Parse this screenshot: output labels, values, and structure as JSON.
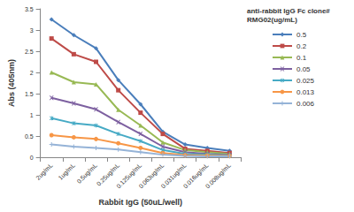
{
  "chart_data": {
    "type": "line",
    "x_label": "Rabbit IgG (50uL/well)",
    "y_label": "Abs (405nm)",
    "legend_title": "anti-rabbit IgG Fc clone# RMG02(ug/mL)",
    "categories": [
      "2ug/mL",
      "1ug/mL",
      "0.5ug/mL",
      "0.25ug/mL",
      "0.125ug/mL",
      "0.063ug/mL",
      "0.031ug/mL",
      "0.016ug/mL",
      "0.008ug/mL"
    ],
    "ylim": [
      0,
      3.5
    ],
    "yticks": [
      0,
      0.5,
      1,
      1.5,
      2,
      2.5,
      3,
      3.5
    ],
    "grid": false,
    "legend": "right",
    "series": [
      {
        "name": "0.5",
        "color": "#4a7ebb",
        "marker": "diamond",
        "values": [
          3.25,
          2.88,
          2.57,
          1.82,
          1.25,
          0.6,
          0.3,
          0.22,
          0.15
        ]
      },
      {
        "name": "0.2",
        "color": "#be4b48",
        "marker": "square",
        "values": [
          2.8,
          2.43,
          2.25,
          1.58,
          1.05,
          0.55,
          0.2,
          0.15,
          0.1
        ]
      },
      {
        "name": "0.1",
        "color": "#98b954",
        "marker": "triangle",
        "values": [
          2.0,
          1.77,
          1.72,
          1.12,
          0.75,
          0.35,
          0.17,
          0.12,
          0.08
        ]
      },
      {
        "name": "0.05",
        "color": "#7d60a0",
        "marker": "x",
        "values": [
          1.4,
          1.27,
          1.13,
          0.83,
          0.55,
          0.25,
          0.12,
          0.08,
          0.05
        ]
      },
      {
        "name": "0.025",
        "color": "#46aac5",
        "marker": "star",
        "values": [
          0.92,
          0.8,
          0.75,
          0.55,
          0.38,
          0.17,
          0.08,
          0.06,
          0.04
        ]
      },
      {
        "name": "0.013",
        "color": "#f79646",
        "marker": "circle",
        "values": [
          0.52,
          0.47,
          0.43,
          0.33,
          0.22,
          0.1,
          0.05,
          0.04,
          0.03
        ]
      },
      {
        "name": "0.006",
        "color": "#95b3d7",
        "marker": "plus",
        "values": [
          0.3,
          0.25,
          0.22,
          0.18,
          0.12,
          0.06,
          0.03,
          0.02,
          0.02
        ]
      }
    ]
  }
}
